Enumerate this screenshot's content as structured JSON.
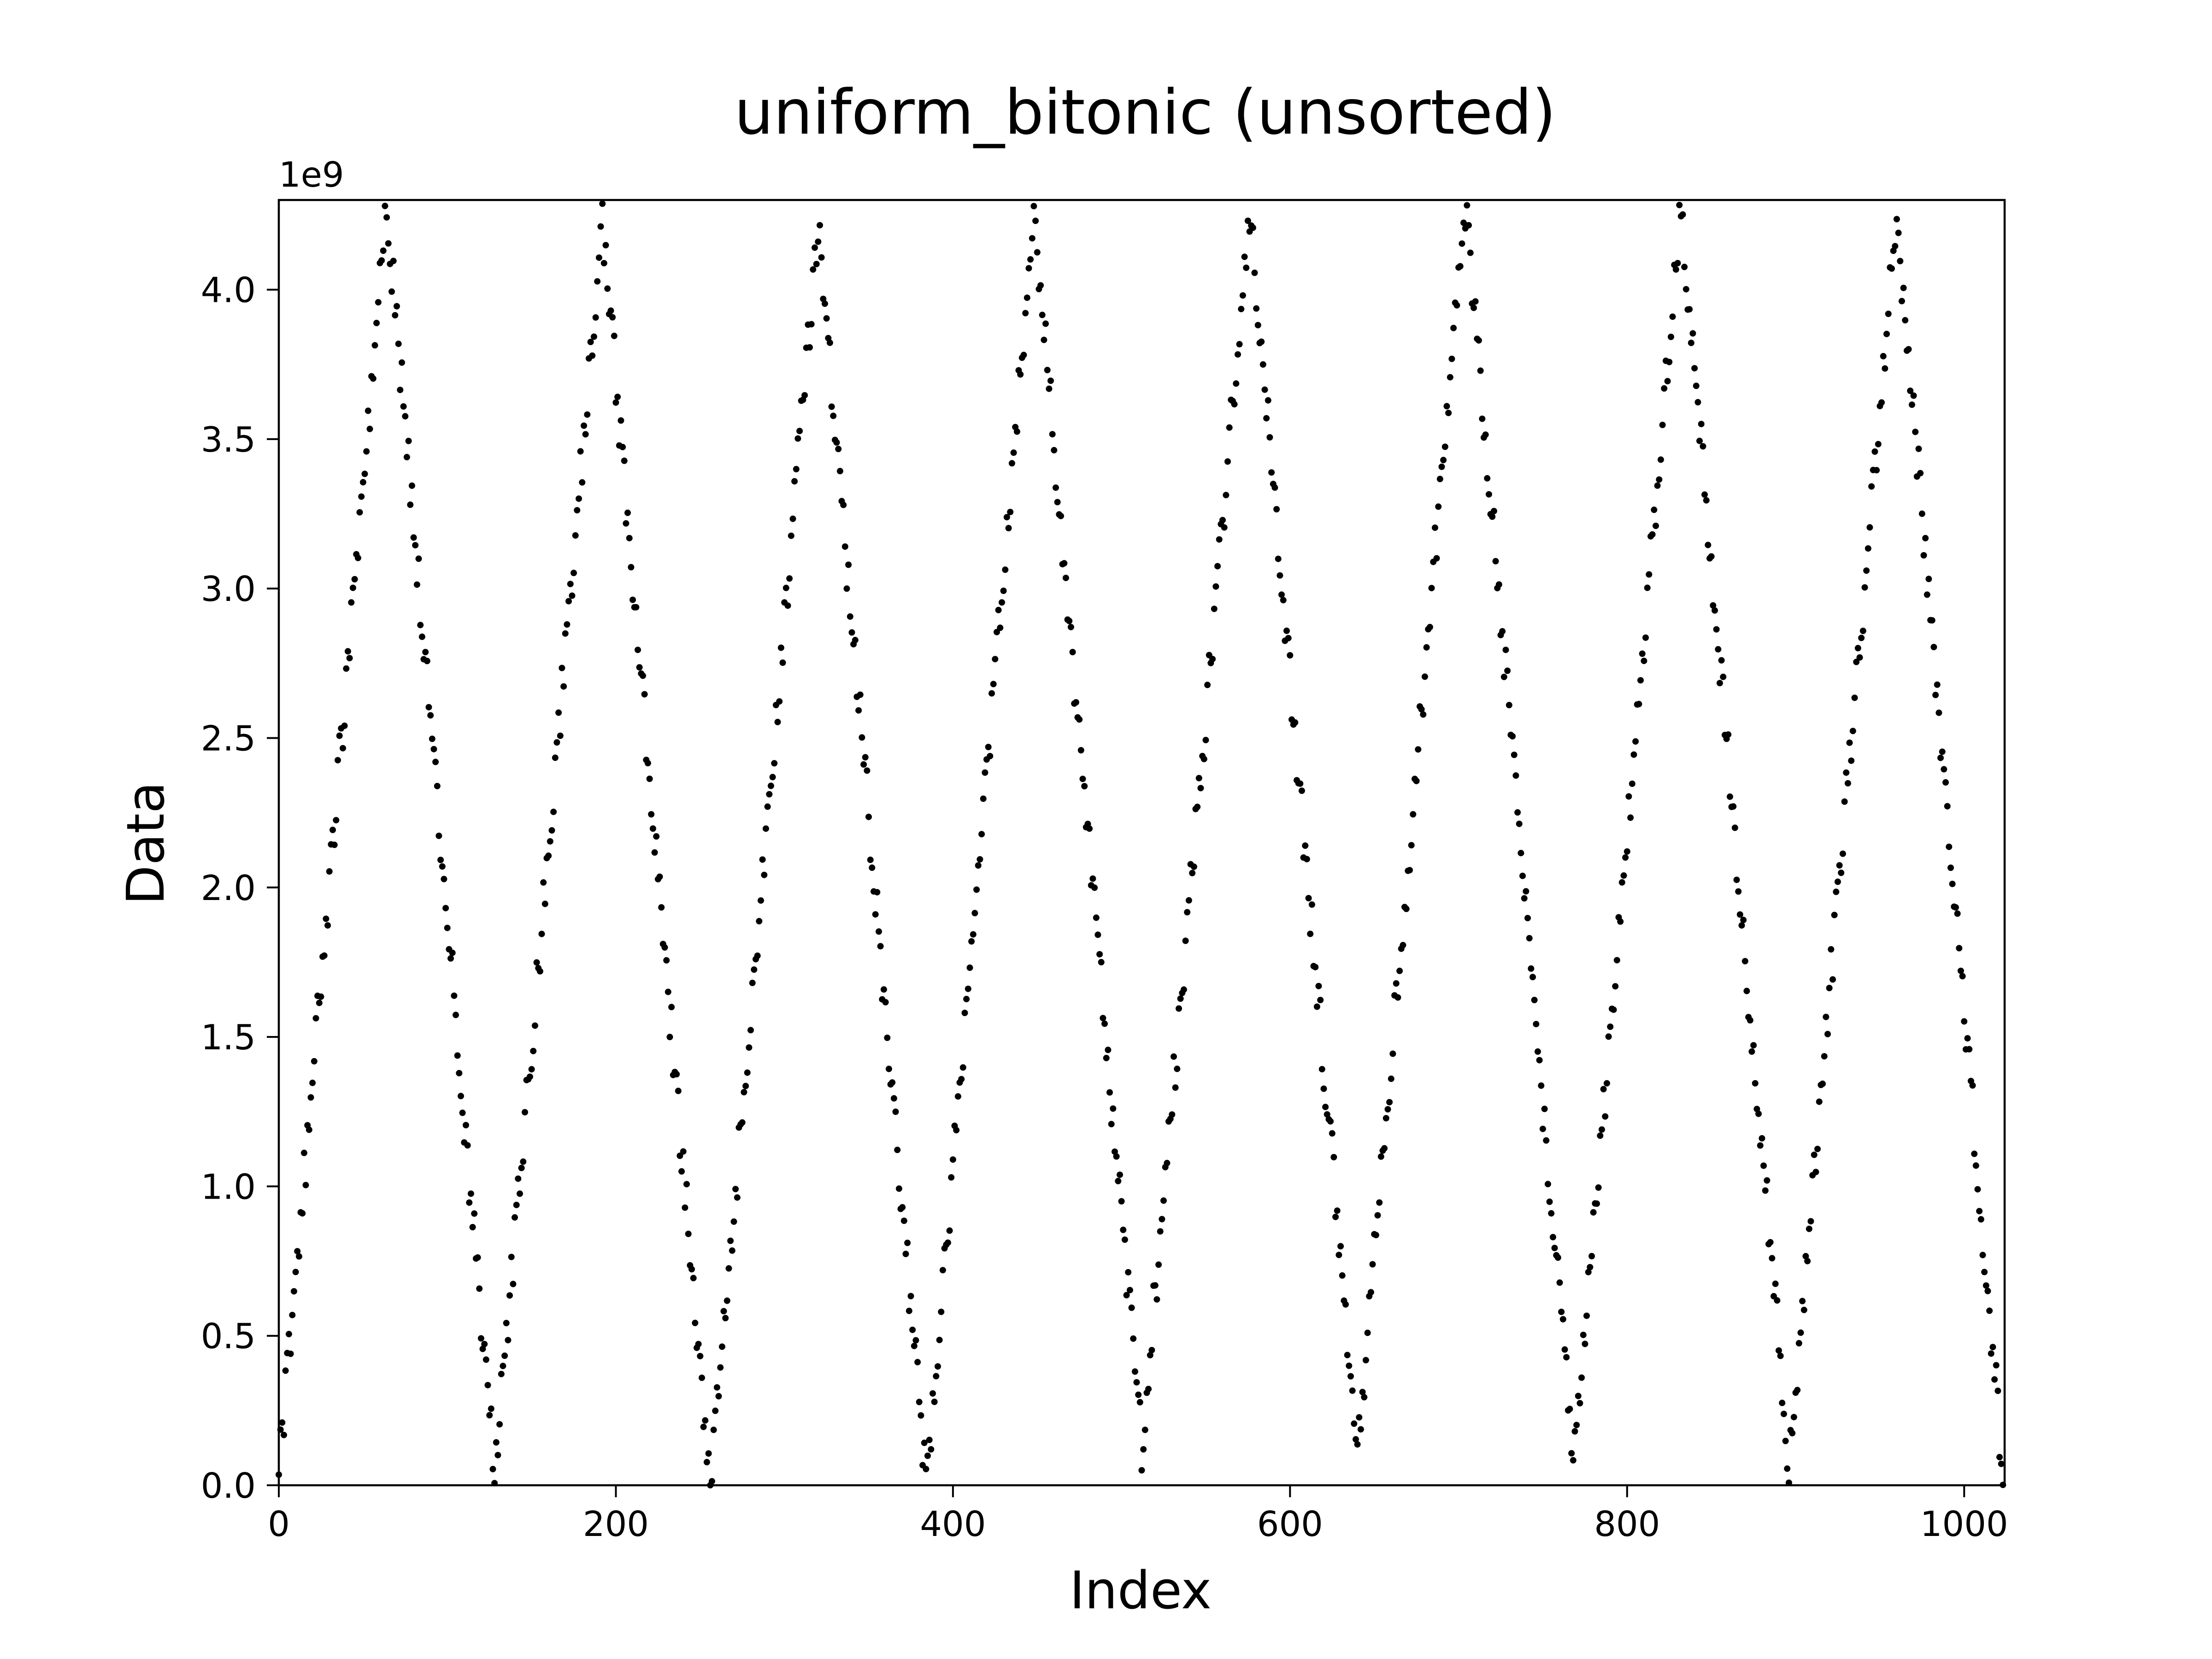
{
  "chart_data": {
    "type": "scatter",
    "title": "uniform_bitonic (unsorted)",
    "xlabel": "Index",
    "ylabel": "Data",
    "y_offset_label": "1e9",
    "xlim": [
      0,
      1024
    ],
    "ylim": [
      0,
      4.3
    ],
    "y_unit_multiplier": 1000000000,
    "x_ticks": [
      0,
      200,
      400,
      600,
      800,
      1000
    ],
    "x_tick_labels": [
      "0",
      "200",
      "400",
      "600",
      "800",
      "1000"
    ],
    "y_ticks": [
      0,
      0.5,
      1.0,
      1.5,
      2.0,
      2.5,
      3.0,
      3.5,
      4.0
    ],
    "y_tick_labels": [
      "0.0",
      "0.5",
      "1.0",
      "1.5",
      "2.0",
      "2.5",
      "3.0",
      "3.5",
      "4.0"
    ],
    "grid": false,
    "marker_color": "#000000",
    "pattern": {
      "description_kind": "bitonic sawtooth",
      "n_points": 1024,
      "run_length": 64,
      "peaks_x": [
        64,
        192,
        320,
        448,
        576,
        704,
        832,
        960
      ],
      "troughs_x": [
        0,
        128,
        256,
        384,
        512,
        640,
        768,
        896,
        1023
      ],
      "peak_y_approx": [
        4.28,
        4.22,
        4.2,
        4.25,
        4.25,
        4.29,
        4.27,
        4.25
      ],
      "trough_y_approx": [
        0.03,
        0.04,
        0.0,
        0.01,
        0.13,
        0.12,
        0.08,
        0.08,
        0.05
      ],
      "y_max": 4.29
    }
  }
}
